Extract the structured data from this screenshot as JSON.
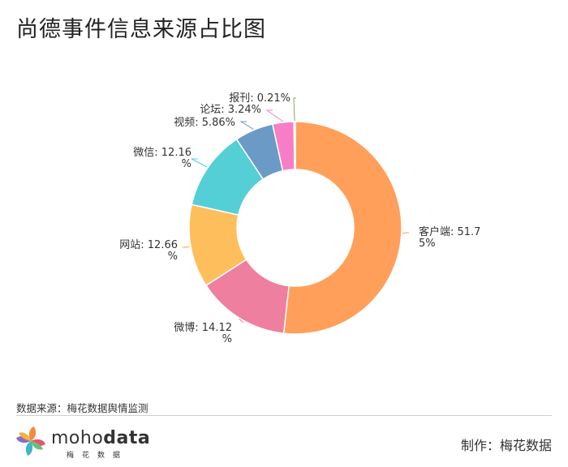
{
  "header": {
    "title": "尚德事件信息来源占比图"
  },
  "chart_data": {
    "type": "pie",
    "title": "尚德事件信息来源占比图",
    "series": [
      {
        "name": "客户端",
        "value": 51.75,
        "label": [
          "客户端: 51.7",
          "5%"
        ],
        "color": "#FF9F5A"
      },
      {
        "name": "微博",
        "value": 14.12,
        "label": [
          "微博: 14.12",
          "%"
        ],
        "color": "#EE7F9F"
      },
      {
        "name": "网站",
        "value": 12.66,
        "label": [
          "网站: 12.66",
          "%"
        ],
        "color": "#FFBE5C"
      },
      {
        "name": "微信",
        "value": 12.16,
        "label": [
          "微信: 12.16",
          "%"
        ],
        "color": "#55CFD6"
      },
      {
        "name": "视频",
        "value": 5.86,
        "label": [
          "视频: 5.86%"
        ],
        "color": "#6B9AC7"
      },
      {
        "name": "论坛",
        "value": 3.24,
        "label": [
          "论坛: 3.24%"
        ],
        "color": "#F77EC6"
      },
      {
        "name": "报刊",
        "value": 0.21,
        "label": [
          "报刊: 0.21%"
        ],
        "color": "#86A862"
      }
    ]
  },
  "footer": {
    "source": "数据来源：梅花数据舆情监测",
    "brand_part1": "moho",
    "brand_part2": "data",
    "brand_sub": "梅花数据",
    "maker": "制作：梅花数据"
  }
}
